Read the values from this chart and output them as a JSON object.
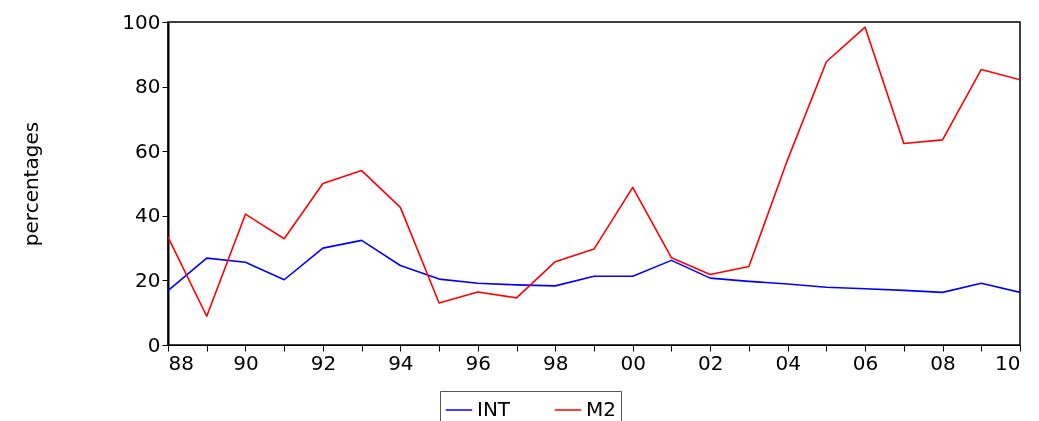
{
  "chart_data": {
    "type": "line",
    "ylabel": "percentages",
    "x": [
      1988,
      1989,
      1990,
      1991,
      1992,
      1993,
      1994,
      1995,
      1996,
      1997,
      1998,
      1999,
      2000,
      2001,
      2002,
      2003,
      2004,
      2005,
      2006,
      2007,
      2008,
      2009,
      2010
    ],
    "series": [
      {
        "name": "INT",
        "color": "#0000ff",
        "values": [
          16.8,
          26.9,
          25.6,
          20.2,
          30.0,
          32.4,
          24.6,
          20.4,
          19.1,
          18.6,
          18.3,
          21.3,
          21.3,
          26.2,
          20.7,
          19.7,
          18.9,
          17.9,
          17.4,
          16.9,
          16.3,
          19.1,
          16.3
        ]
      },
      {
        "name": "M2",
        "color": "#ff0000",
        "values": [
          33.4,
          8.9,
          40.5,
          32.9,
          50.0,
          54.0,
          42.6,
          13.0,
          16.4,
          14.6,
          25.8,
          29.7,
          48.8,
          27.0,
          21.8,
          24.3,
          57.4,
          87.7,
          98.4,
          62.4,
          63.5,
          85.3,
          82.1
        ]
      }
    ],
    "xlim": [
      1988,
      2010
    ],
    "xticks": [
      {
        "value": 1988,
        "label": "88"
      },
      {
        "value": 1989,
        "label": null
      },
      {
        "value": 1990,
        "label": "90"
      },
      {
        "value": 1991,
        "label": null
      },
      {
        "value": 1992,
        "label": "92"
      },
      {
        "value": 1993,
        "label": null
      },
      {
        "value": 1994,
        "label": "94"
      },
      {
        "value": 1995,
        "label": null
      },
      {
        "value": 1996,
        "label": "96"
      },
      {
        "value": 1997,
        "label": null
      },
      {
        "value": 1998,
        "label": "98"
      },
      {
        "value": 1999,
        "label": null
      },
      {
        "value": 2000,
        "label": "00"
      },
      {
        "value": 2001,
        "label": null
      },
      {
        "value": 2002,
        "label": "02"
      },
      {
        "value": 2003,
        "label": null
      },
      {
        "value": 2004,
        "label": "04"
      },
      {
        "value": 2005,
        "label": null
      },
      {
        "value": 2006,
        "label": "06"
      },
      {
        "value": 2007,
        "label": null
      },
      {
        "value": 2008,
        "label": "08"
      },
      {
        "value": 2009,
        "label": null
      },
      {
        "value": 2010,
        "label": "10"
      }
    ],
    "ylim": [
      0,
      100
    ],
    "yticks": [
      0,
      20,
      40,
      60,
      80,
      100
    ],
    "legend": "bottom",
    "marker": "none",
    "line_style": "solid"
  }
}
